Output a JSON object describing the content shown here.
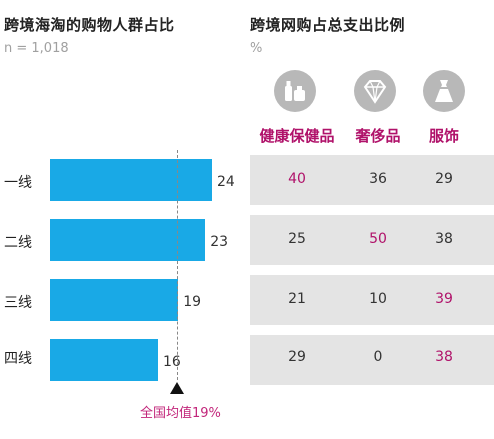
{
  "left": {
    "title": "跨境海淘的购物人群占比",
    "subtitle": "n = 1,018",
    "avg_label": "全国均值19%"
  },
  "right": {
    "title": "跨境网购占总支出比例",
    "subtitle": "%",
    "icons": [
      "cosmetics-icon",
      "diamond-icon",
      "dress-icon"
    ]
  },
  "colors": {
    "bar": "#19a9e6",
    "highlight": "#b0126a",
    "row_bg": "#e4e4e4"
  },
  "chart_data": [
    {
      "type": "bar",
      "orientation": "horizontal",
      "categories": [
        "一线",
        "二线",
        "三线",
        "四线"
      ],
      "values": [
        24,
        23,
        19,
        16
      ],
      "average": 19,
      "title": "跨境海淘的购物人群占比",
      "subtitle": "n = 1,018",
      "xlim": [
        0,
        24
      ]
    },
    {
      "type": "table",
      "columns": [
        "健康保健品",
        "奢侈品",
        "服饰"
      ],
      "rows": [
        "一线",
        "二线",
        "三线",
        "四线"
      ],
      "values": [
        [
          40,
          36,
          29
        ],
        [
          25,
          50,
          38
        ],
        [
          21,
          10,
          39
        ],
        [
          29,
          0,
          38
        ]
      ],
      "highlighted": [
        [
          0,
          0
        ],
        [
          1,
          1
        ],
        [
          2,
          2
        ],
        [
          3,
          2
        ]
      ],
      "title": "跨境网购占总支出比例",
      "unit": "%"
    }
  ]
}
